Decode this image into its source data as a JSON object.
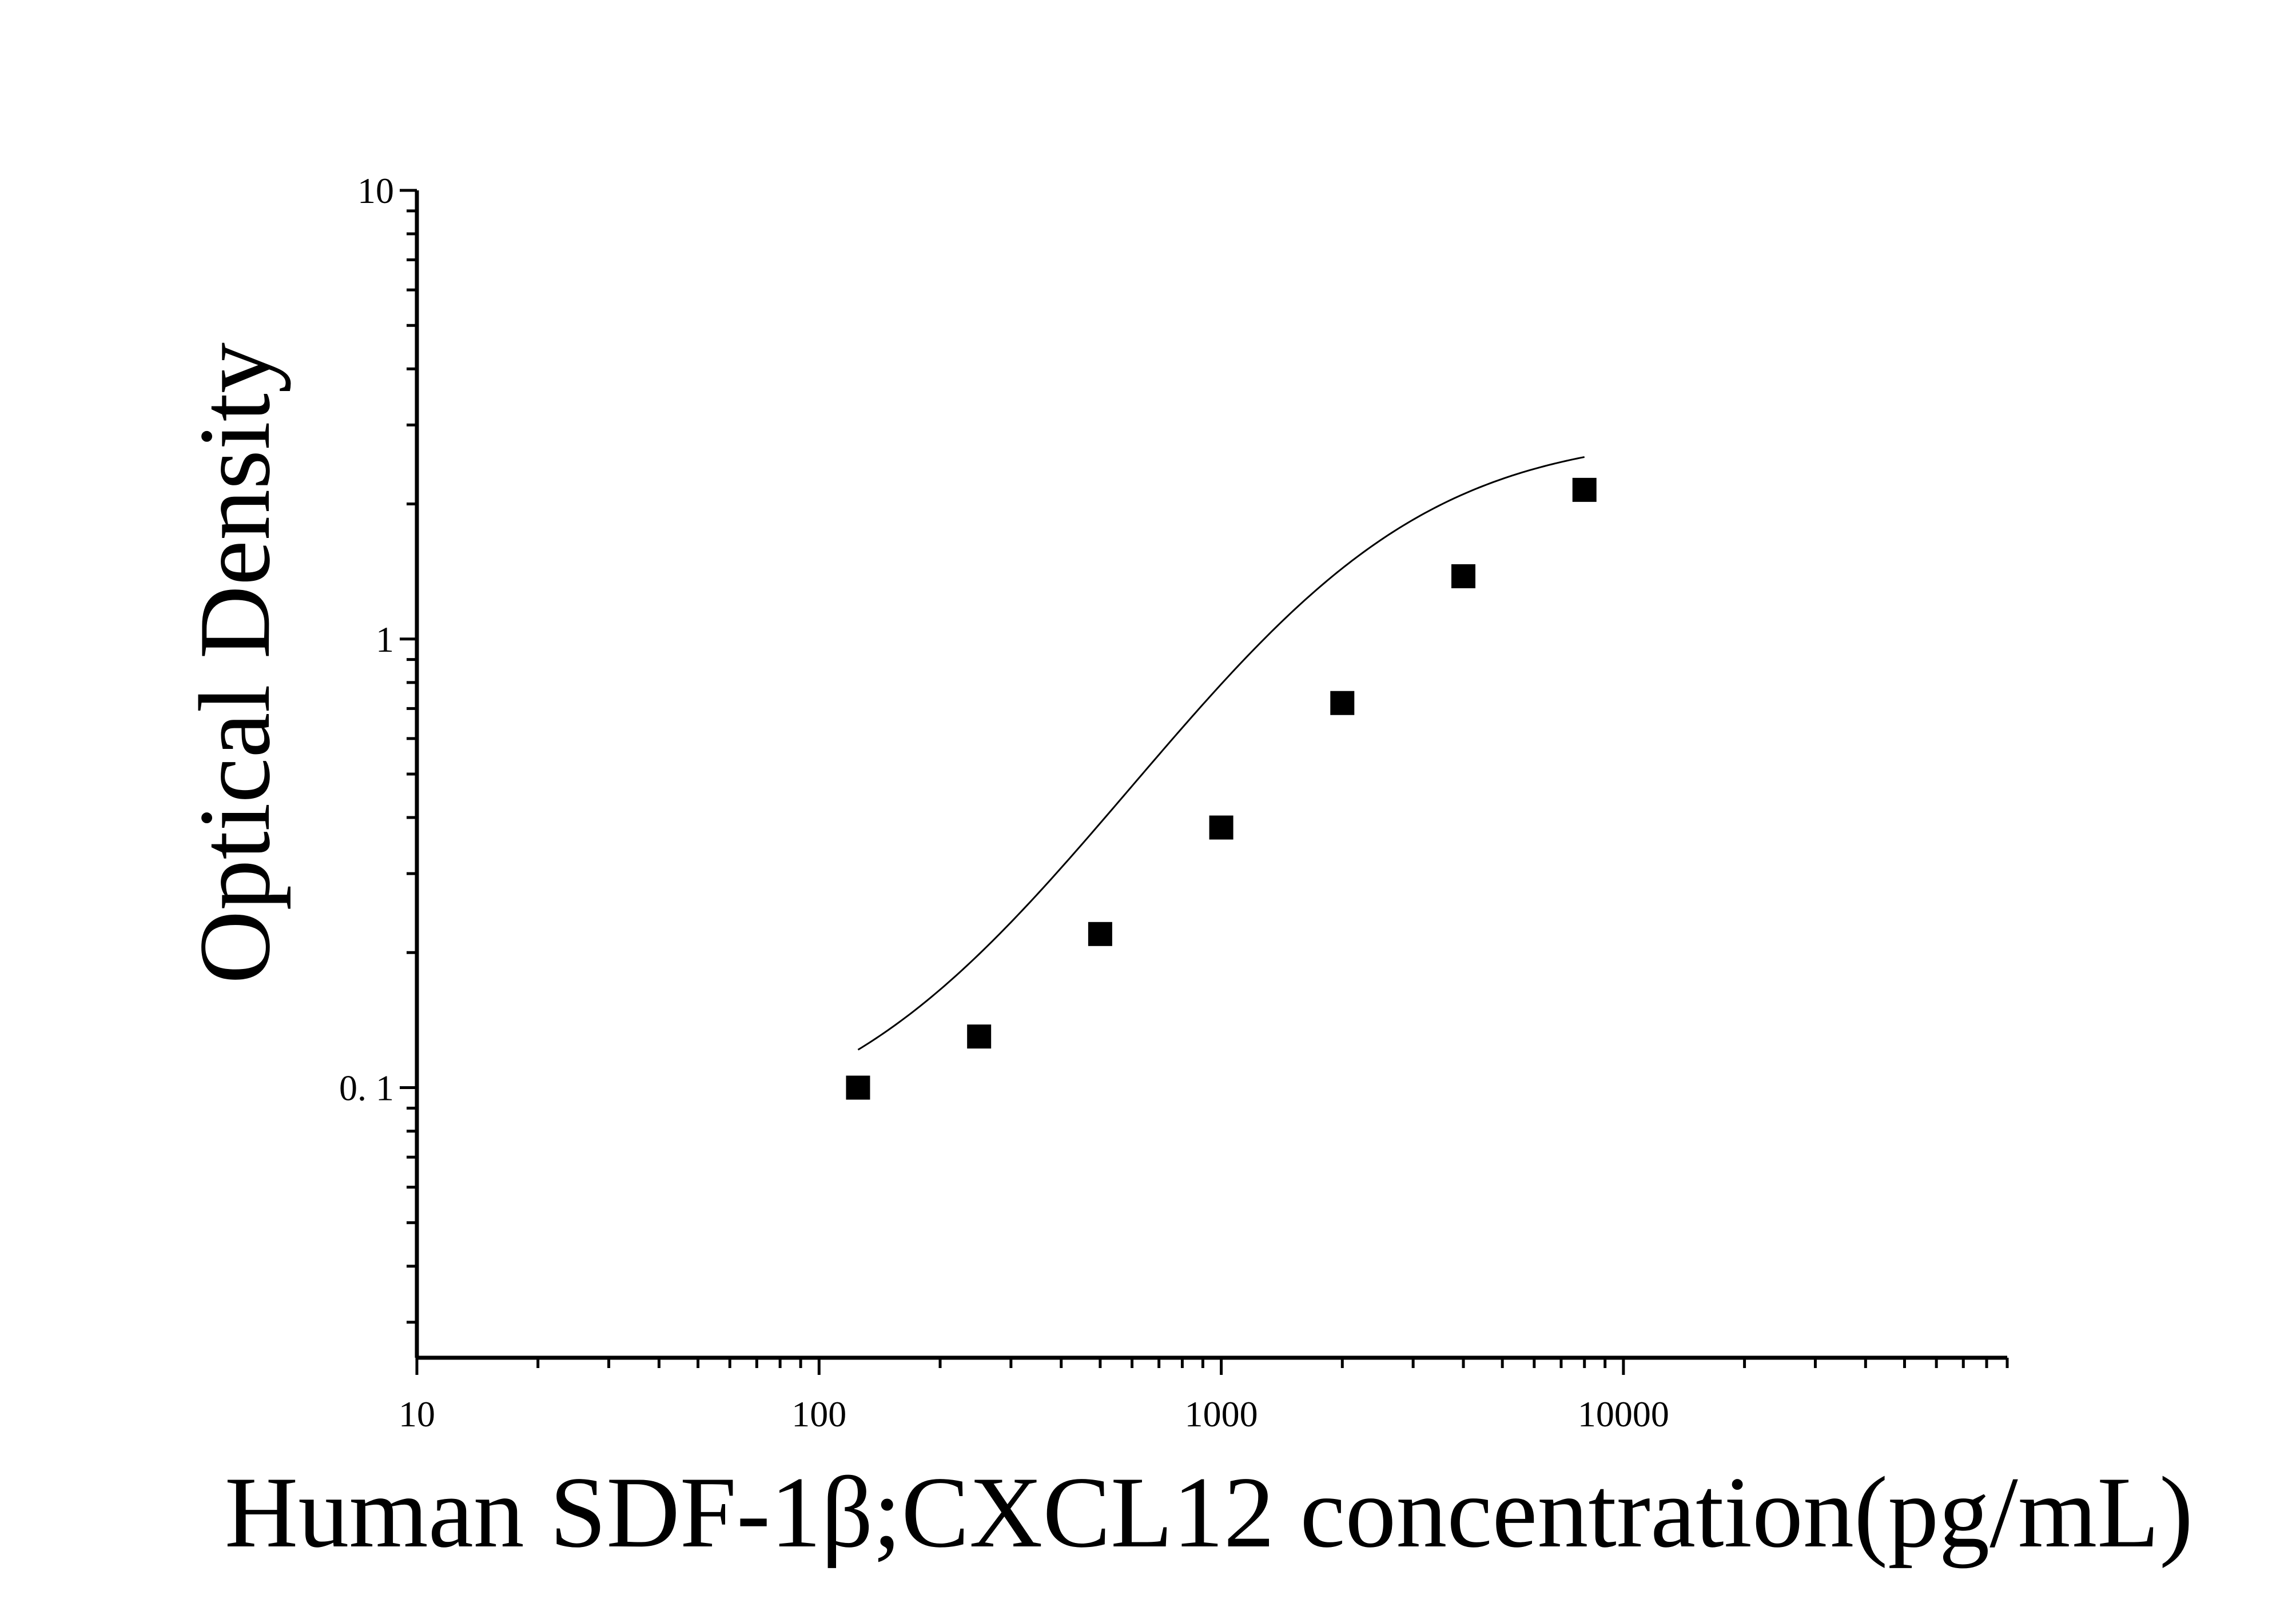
{
  "chart_data": {
    "type": "scatter",
    "title": "",
    "xlabel": "Human SDF-1β;CXCL12 concentration(pg/mL)",
    "ylabel": "Optical Density",
    "xscale": "log",
    "yscale": "log",
    "xlim": [
      10,
      90000
    ],
    "ylim": [
      0.025,
      10
    ],
    "x_ticks": [
      10,
      100,
      1000,
      10000
    ],
    "x_tick_labels": [
      "10",
      "100",
      "1000",
      "10000"
    ],
    "y_ticks": [
      0.1,
      1,
      10
    ],
    "y_tick_labels": [
      "0. 1",
      "1",
      "10"
    ],
    "grid": false,
    "legend": "none",
    "series": [
      {
        "marker": "square",
        "color": "#000000",
        "x": [
          125,
          250,
          500,
          1000,
          2000,
          4000,
          8000
        ],
        "y": [
          0.1,
          0.13,
          0.22,
          0.38,
          0.72,
          1.38,
          2.15
        ]
      }
    ],
    "fit_curve": {
      "type": "4PL",
      "color": "#000000",
      "x_range": [
        125,
        8000
      ],
      "bottom": 0.075,
      "top": 2.9,
      "ec50": 2100,
      "hill": 1.45
    }
  }
}
